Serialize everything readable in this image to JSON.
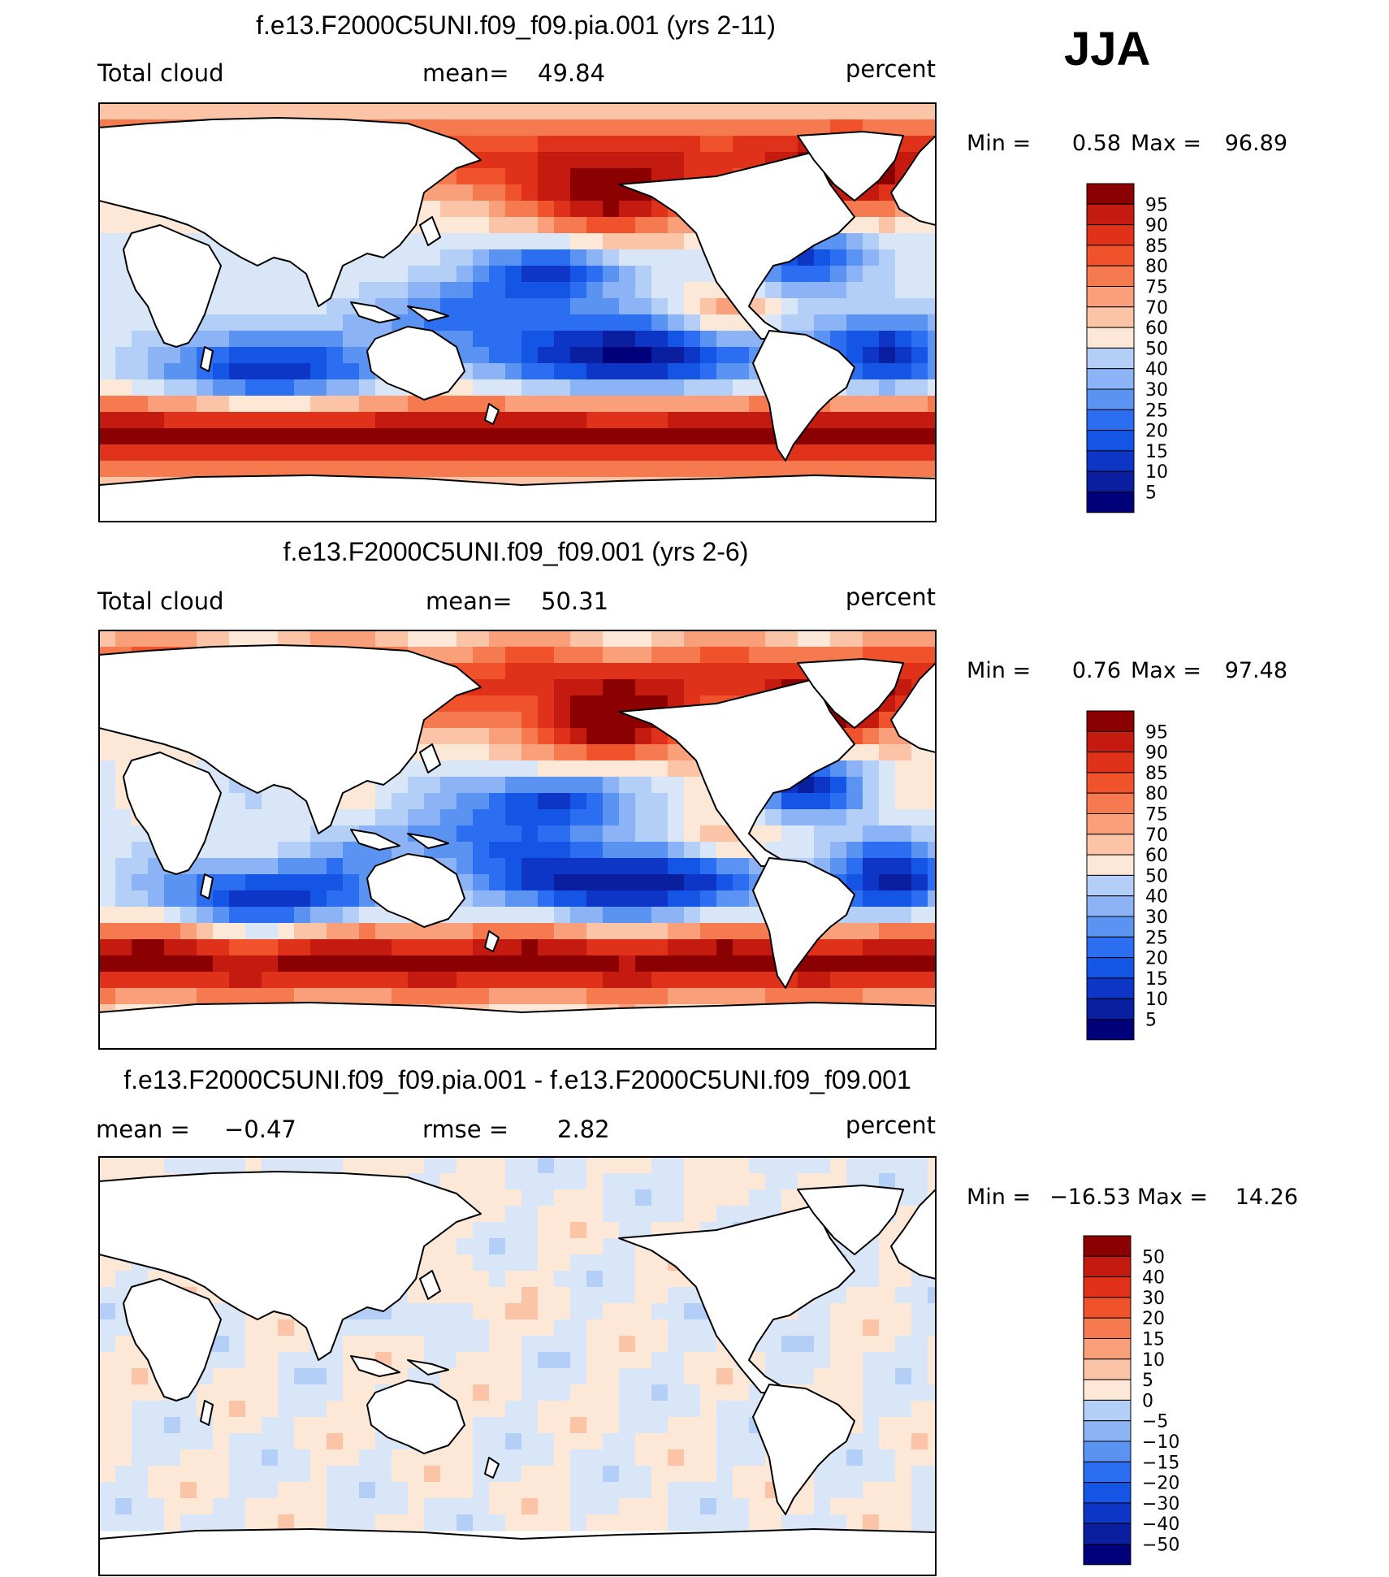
{
  "figure": {
    "season": "JJA"
  },
  "colors": {
    "abs_palette": [
      "#00007a",
      "#0a1fa0",
      "#0d36c7",
      "#1455e6",
      "#2b6ef2",
      "#5b93f2",
      "#8bb3f5",
      "#b4cff7",
      "#d8e6f8",
      "#fde7d6",
      "#fbc4a6",
      "#f9a07a",
      "#f67a50",
      "#f0532c",
      "#e0321a",
      "#c41a0f",
      "#8b0000"
    ],
    "diff_palette": [
      "#00007a",
      "#0a1fa0",
      "#0d36c7",
      "#1455e6",
      "#2b6ef2",
      "#5b93f2",
      "#8bb3f5",
      "#b4cff7",
      "#d8e6f8",
      "#fde7d6",
      "#fbc4a6",
      "#f9a07a",
      "#f67a50",
      "#f0532c",
      "#e0321a",
      "#c41a0f",
      "#8b0000"
    ]
  },
  "icons": [
    "world-map-coastline"
  ],
  "chart_data": [
    {
      "type": "heatmap",
      "title": "f.e13.F2000C5UNI.f09_f09.pia.001 (yrs 2-11)",
      "variable": "Total cloud",
      "mean_label": "mean=",
      "mean": "49.84",
      "units": "percent",
      "min_label": "Min =",
      "min": "0.58",
      "max_label": "Max =",
      "max": "96.89",
      "levels": [
        "95",
        "90",
        "85",
        "80",
        "75",
        "70",
        "60",
        "50",
        "40",
        "30",
        "25",
        "20",
        "15",
        "10",
        "5"
      ],
      "field": "cloud_a"
    },
    {
      "type": "heatmap",
      "title": "f.e13.F2000C5UNI.f09_f09.001 (yrs 2-6)",
      "variable": "Total cloud",
      "mean_label": "mean=",
      "mean": "50.31",
      "units": "percent",
      "min_label": "Min =",
      "min": "0.76",
      "max_label": "Max =",
      "max": "97.48",
      "levels": [
        "95",
        "90",
        "85",
        "80",
        "75",
        "70",
        "60",
        "50",
        "40",
        "30",
        "25",
        "20",
        "15",
        "10",
        "5"
      ],
      "field": "cloud_b"
    },
    {
      "type": "heatmap",
      "title": "f.e13.F2000C5UNI.f09_f09.pia.001 - f.e13.F2000C5UNI.f09_f09.001",
      "mean_label": "mean =",
      "mean": "−0.47",
      "rmse_label": "rmse =",
      "rmse": "2.82",
      "units": "percent",
      "min_label": "Min =",
      "min": "−16.53",
      "max_label": "Max =",
      "max": "14.26",
      "levels": [
        "50",
        "40",
        "30",
        "20",
        "15",
        "10",
        "5",
        "0",
        "−5",
        "−10",
        "−15",
        "−20",
        "−30",
        "−40",
        "−50"
      ],
      "field": "diff"
    }
  ]
}
